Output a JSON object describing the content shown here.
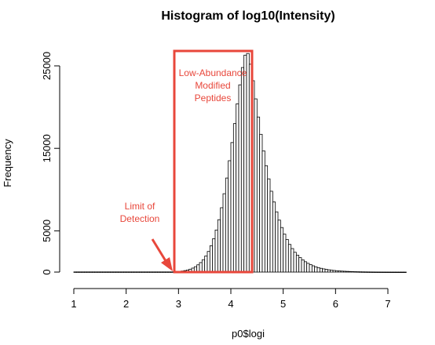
{
  "chart_data": {
    "type": "bar",
    "title": "Histogram of log10(Intensity)",
    "xlabel": "p0$logi",
    "ylabel": "Frequency",
    "xlim": [
      1,
      7.6
    ],
    "ylim": [
      0,
      27000
    ],
    "x_ticks": [
      1,
      2,
      3,
      4,
      5,
      6,
      7
    ],
    "x_tick_labels": [
      "1",
      "2",
      "3",
      "4",
      "5",
      "6",
      "7"
    ],
    "y_ticks": [
      0,
      5000,
      15000,
      25000
    ],
    "y_tick_labels": [
      "0",
      "5000",
      "15000",
      "25000"
    ],
    "bin_width": 0.05,
    "bin_start": 2.9,
    "values": [
      40,
      60,
      90,
      130,
      180,
      250,
      350,
      480,
      650,
      880,
      1150,
      1500,
      1950,
      2500,
      3200,
      4050,
      5100,
      6350,
      7800,
      9500,
      11400,
      13500,
      15700,
      18000,
      20400,
      22700,
      24800,
      26300,
      26500,
      25200,
      23200,
      21000,
      18800,
      16700,
      14700,
      12900,
      11300,
      9800,
      8500,
      7300,
      6300,
      5400,
      4600,
      3950,
      3350,
      2850,
      2400,
      2050,
      1750,
      1480,
      1250,
      1060,
      900,
      760,
      640,
      540,
      455,
      385,
      325,
      275,
      230,
      195,
      165,
      140,
      118,
      100,
      84,
      70,
      58,
      48,
      40,
      33,
      27,
      22,
      18,
      15,
      12,
      10,
      8,
      6,
      5,
      4,
      3,
      2,
      2,
      1,
      1,
      1,
      1
    ],
    "low_tail": {
      "from": 1.0,
      "to": 2.9,
      "level": 20
    },
    "annotations": {
      "box_label": [
        "Low-Abundance",
        "Modified",
        "Peptides"
      ],
      "arrow_label": [
        "Limit of",
        "Detection"
      ]
    },
    "annotation_color": "#e8473b"
  }
}
